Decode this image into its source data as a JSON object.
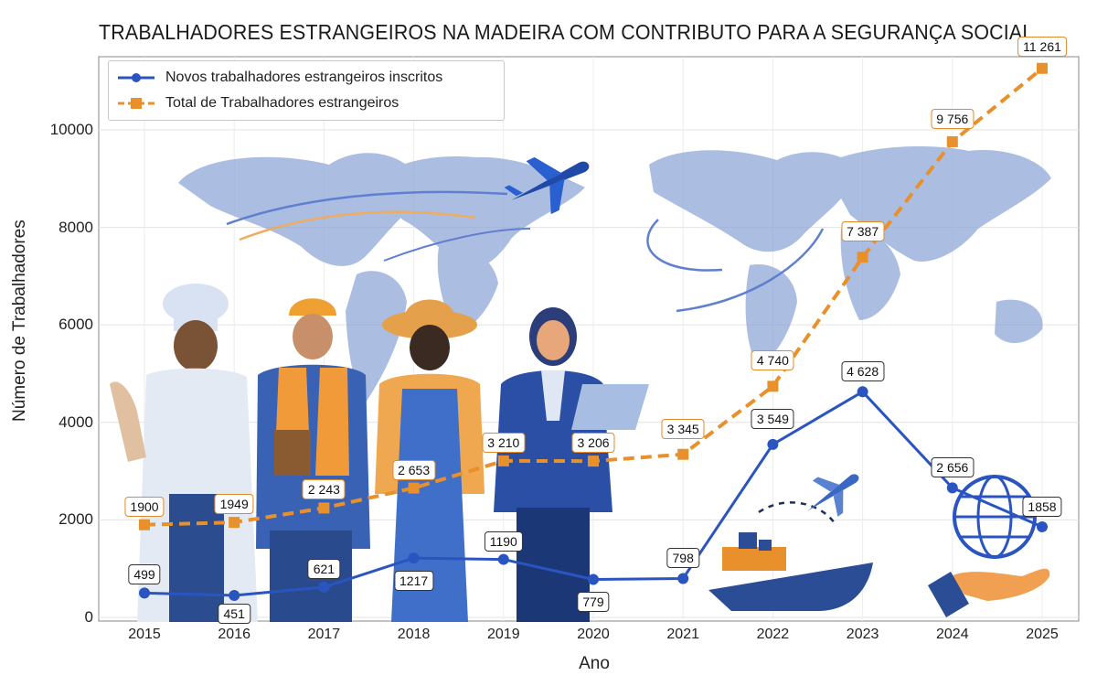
{
  "chart_data": {
    "type": "line",
    "title": "TRABALHADORES ESTRANGEIROS NA MADEIRA COM CONTRIBUTO PARA A SEGURANÇA SOCIAL",
    "xlabel": "Ano",
    "ylabel": "Número de Trabalhadores",
    "x": [
      "2015",
      "2016",
      "2017",
      "2018",
      "2019",
      "2020",
      "2021",
      "2022",
      "2023",
      "2024",
      "2025"
    ],
    "ylim": [
      0,
      11500
    ],
    "yticks": [
      "0",
      "2000",
      "4000",
      "6000",
      "8000",
      "10000"
    ],
    "ytick_values": [
      0,
      2000,
      4000,
      6000,
      8000,
      10000
    ],
    "grid": true,
    "legend_position": "top-left",
    "series": [
      {
        "name": "Novos trabalhadores estrangeiros inscritos",
        "color": "#2a55c0",
        "marker": "circle",
        "values": [
          499,
          451,
          621,
          1217,
          1190,
          779,
          798,
          3549,
          4628,
          2656,
          1858
        ],
        "labels": [
          "499",
          "451",
          "621",
          "1217",
          "1190",
          "779",
          "798",
          "3 549",
          "4 628",
          "2 656",
          "1858"
        ]
      },
      {
        "name": "Total de Trabalhadores estrangeiros",
        "color": "#e8912c",
        "marker": "square",
        "values": [
          1900,
          1949,
          2243,
          2653,
          3210,
          3206,
          3345,
          4740,
          7387,
          9756,
          11261
        ],
        "labels": [
          "1900",
          "1949",
          "2 243",
          "2 653",
          "3 210",
          "3 206",
          "3 345",
          "4 740",
          "7 387",
          "9 756",
          "11 261"
        ]
      }
    ]
  },
  "decorations": [
    "world-map",
    "chef",
    "construction-worker",
    "farm-worker",
    "office-worker",
    "airplane",
    "ship",
    "globe",
    "hand"
  ]
}
